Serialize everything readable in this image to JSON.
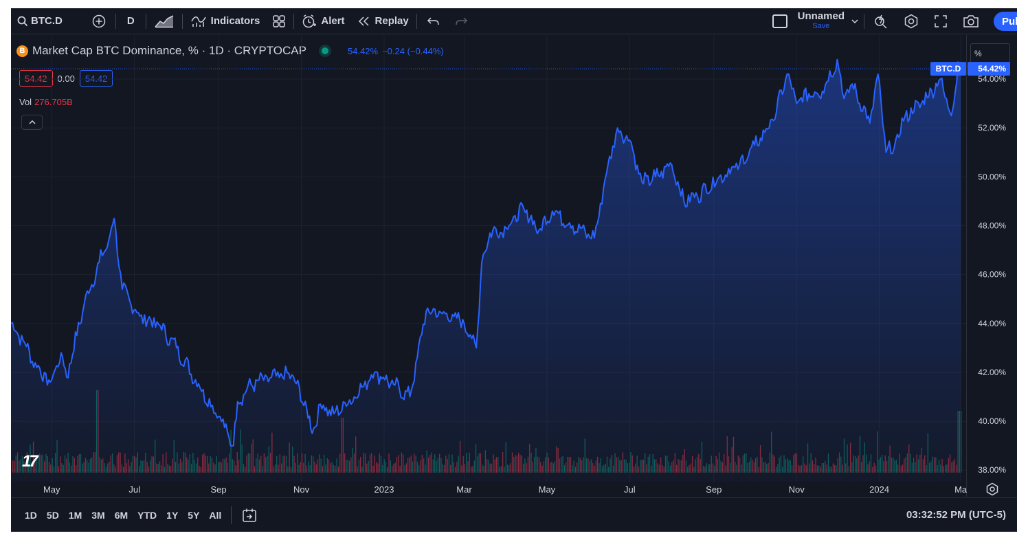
{
  "toolbar": {
    "symbol": "BTC.D",
    "interval": "D",
    "indicators_label": "Indicators",
    "alert_label": "Alert",
    "replay_label": "Replay",
    "layout_name": "Unnamed",
    "save_label": "Save",
    "publish_label": "Pul"
  },
  "legend": {
    "title": "Market Cap BTC Dominance, % · 1D · CRYPTOCAP",
    "price": "54.42%",
    "change": "−0.24 (−0.44%)",
    "scale_mode": "%",
    "ohlc": [
      "54.42",
      "0.00",
      "54.42"
    ],
    "vol_label": "Vol",
    "vol_value": "276.705B"
  },
  "price_axis": {
    "symbol_tag": "BTC.D",
    "last_price": "54.42%",
    "ticks": [
      "38.00%",
      "40.00%",
      "42.00%",
      "44.00%",
      "46.00%",
      "48.00%",
      "50.00%",
      "52.00%",
      "54.00%"
    ]
  },
  "time_axis": {
    "labels": [
      "May",
      "Jul",
      "Sep",
      "Nov",
      "2023",
      "Mar",
      "May",
      "Jul",
      "Sep",
      "Nov",
      "2024",
      "Ma"
    ]
  },
  "bottom_bar": {
    "ranges": [
      "1D",
      "5D",
      "1M",
      "3M",
      "6M",
      "YTD",
      "1Y",
      "5Y",
      "All"
    ],
    "clock": "03:32:52 PM (UTC-5)"
  },
  "colors": {
    "background": "#131722",
    "line": "#2962ff",
    "up": "#089981",
    "down": "#f23645",
    "bitcoin": "#f7931a"
  },
  "chart_data": {
    "type": "area",
    "series": [
      {
        "name": "BTC.D",
        "x": [
          "2022-04-01",
          "2022-04-10",
          "2022-04-20",
          "2022-04-30",
          "2022-05-08",
          "2022-05-12",
          "2022-05-25",
          "2022-06-05",
          "2022-06-12",
          "2022-06-16",
          "2022-06-22",
          "2022-07-05",
          "2022-07-20",
          "2022-08-01",
          "2022-08-15",
          "2022-09-01",
          "2022-09-12",
          "2022-09-15",
          "2022-09-25",
          "2022-10-10",
          "2022-10-25",
          "2022-11-05",
          "2022-11-09",
          "2022-11-15",
          "2022-11-25",
          "2022-12-10",
          "2022-12-25",
          "2023-01-08",
          "2023-01-20",
          "2023-02-01",
          "2023-02-15",
          "2023-03-01",
          "2023-03-10",
          "2023-03-14",
          "2023-03-20",
          "2023-04-01",
          "2023-04-14",
          "2023-04-25",
          "2023-05-05",
          "2023-05-20",
          "2023-06-05",
          "2023-06-15",
          "2023-06-22",
          "2023-07-01",
          "2023-07-10",
          "2023-07-20",
          "2023-08-01",
          "2023-08-10",
          "2023-08-20",
          "2023-09-05",
          "2023-09-20",
          "2023-10-01",
          "2023-10-15",
          "2023-10-25",
          "2023-11-01",
          "2023-11-10",
          "2023-11-20",
          "2023-12-01",
          "2023-12-06",
          "2023-12-12",
          "2023-12-25",
          "2023-12-31",
          "2024-01-06",
          "2024-01-12",
          "2024-01-20",
          "2024-02-01",
          "2024-02-15",
          "2024-02-23",
          "2024-02-26",
          "2024-02-28",
          "2024-03-01"
        ],
        "values": [
          44.0,
          43.3,
          42.2,
          41.6,
          42.8,
          41.8,
          44.8,
          46.5,
          47.4,
          48.3,
          45.4,
          44.3,
          43.9,
          43.0,
          41.7,
          40.2,
          39.0,
          40.8,
          41.5,
          41.8,
          41.9,
          40.5,
          39.5,
          40.7,
          40.3,
          41.0,
          42.0,
          41.5,
          41.0,
          44.5,
          44.4,
          44.0,
          43.0,
          46.5,
          47.7,
          47.9,
          48.7,
          47.8,
          48.6,
          48.0,
          47.5,
          50.5,
          52.0,
          51.5,
          49.8,
          50.0,
          50.5,
          49.0,
          49.2,
          50.0,
          50.5,
          51.3,
          52.3,
          54.2,
          53.0,
          53.4,
          53.5,
          54.8,
          53.2,
          53.8,
          52.2,
          54.2,
          51.0,
          51.2,
          52.5,
          53.0,
          54.0,
          52.5,
          53.5,
          54.7,
          54.42
        ]
      }
    ],
    "y_range": [
      37.5,
      55.8
    ],
    "y_unit": "%",
    "grid": true,
    "volume_last": "276.705B"
  }
}
